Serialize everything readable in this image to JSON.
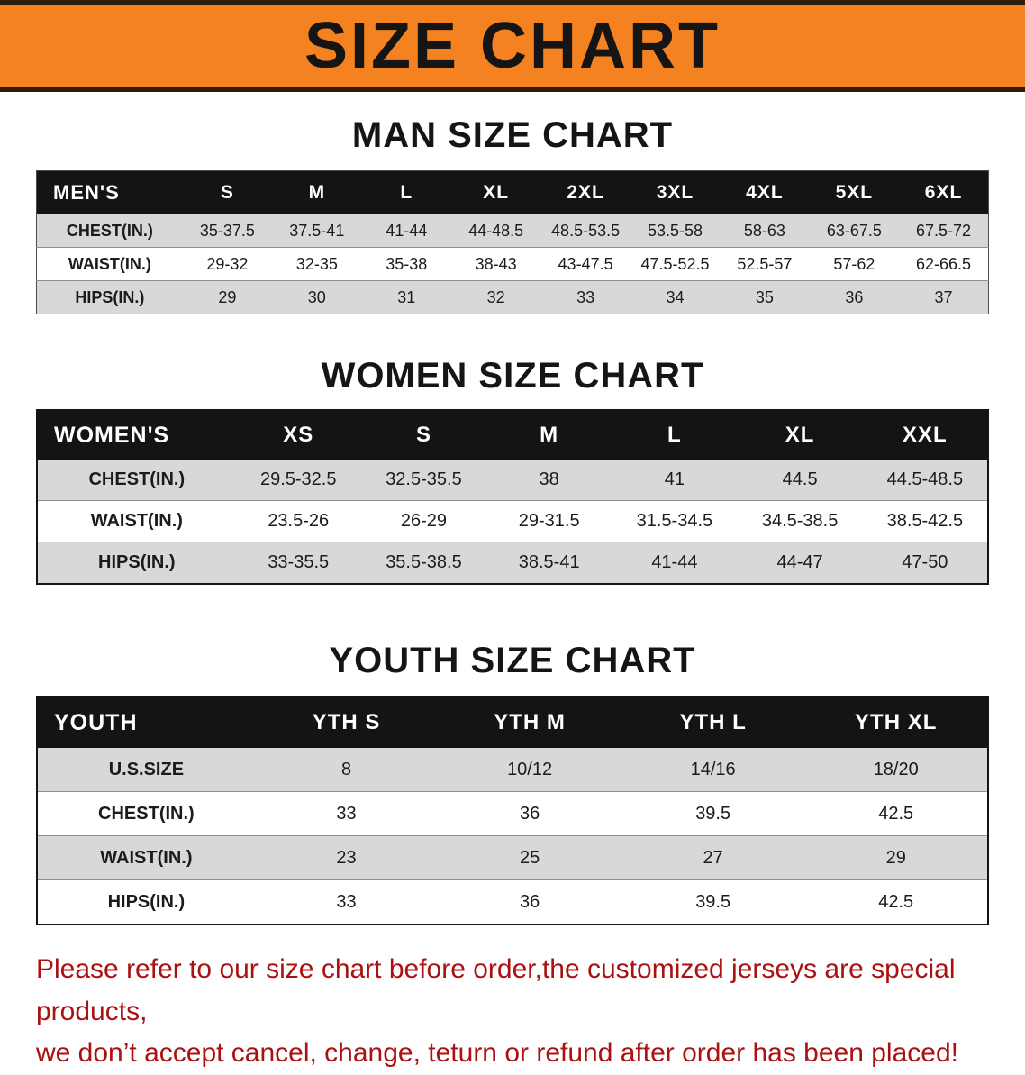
{
  "banner": {
    "title": "SIZE CHART"
  },
  "chart_data": [
    {
      "type": "table",
      "title": "MAN SIZE CHART",
      "columns": [
        "MEN'S",
        "S",
        "M",
        "L",
        "XL",
        "2XL",
        "3XL",
        "4XL",
        "5XL",
        "6XL"
      ],
      "rows": [
        [
          "CHEST(IN.)",
          "35-37.5",
          "37.5-41",
          "41-44",
          "44-48.5",
          "48.5-53.5",
          "53.5-58",
          "58-63",
          "63-67.5",
          "67.5-72"
        ],
        [
          "WAIST(IN.)",
          "29-32",
          "32-35",
          "35-38",
          "38-43",
          "43-47.5",
          "47.5-52.5",
          "52.5-57",
          "57-62",
          "62-66.5"
        ],
        [
          "HIPS(IN.)",
          "29",
          "30",
          "31",
          "32",
          "33",
          "34",
          "35",
          "36",
          "37"
        ]
      ]
    },
    {
      "type": "table",
      "title": "WOMEN SIZE CHART",
      "columns": [
        "WOMEN'S",
        "XS",
        "S",
        "M",
        "L",
        "XL",
        "XXL"
      ],
      "rows": [
        [
          "CHEST(IN.)",
          "29.5-32.5",
          "32.5-35.5",
          "38",
          "41",
          "44.5",
          "44.5-48.5"
        ],
        [
          "WAIST(IN.)",
          "23.5-26",
          "26-29",
          "29-31.5",
          "31.5-34.5",
          "34.5-38.5",
          "38.5-42.5"
        ],
        [
          "HIPS(IN.)",
          "33-35.5",
          "35.5-38.5",
          "38.5-41",
          "41-44",
          "44-47",
          "47-50"
        ]
      ]
    },
    {
      "type": "table",
      "title": "YOUTH SIZE CHART",
      "columns": [
        "YOUTH",
        "YTH S",
        "YTH M",
        "YTH L",
        "YTH XL"
      ],
      "rows": [
        [
          "U.S.SIZE",
          "8",
          "10/12",
          "14/16",
          "18/20"
        ],
        [
          "CHEST(IN.)",
          "33",
          "36",
          "39.5",
          "42.5"
        ],
        [
          "WAIST(IN.)",
          "23",
          "25",
          "27",
          "29"
        ],
        [
          "HIPS(IN.)",
          "33",
          "36",
          "39.5",
          "42.5"
        ]
      ]
    }
  ],
  "footnote": {
    "line1": "Please refer to our size chart before order,the customized jerseys are special products,",
    "line2": "we don’t accept cancel, change, teturn or refund after order has been placed!"
  },
  "colors": {
    "banner-bg": "#f58220",
    "banner-border": "#2e1c08",
    "table-header-bg": "#141414",
    "row-alt-bg": "#d8d8d8",
    "footnote-red": "#ab1111"
  }
}
